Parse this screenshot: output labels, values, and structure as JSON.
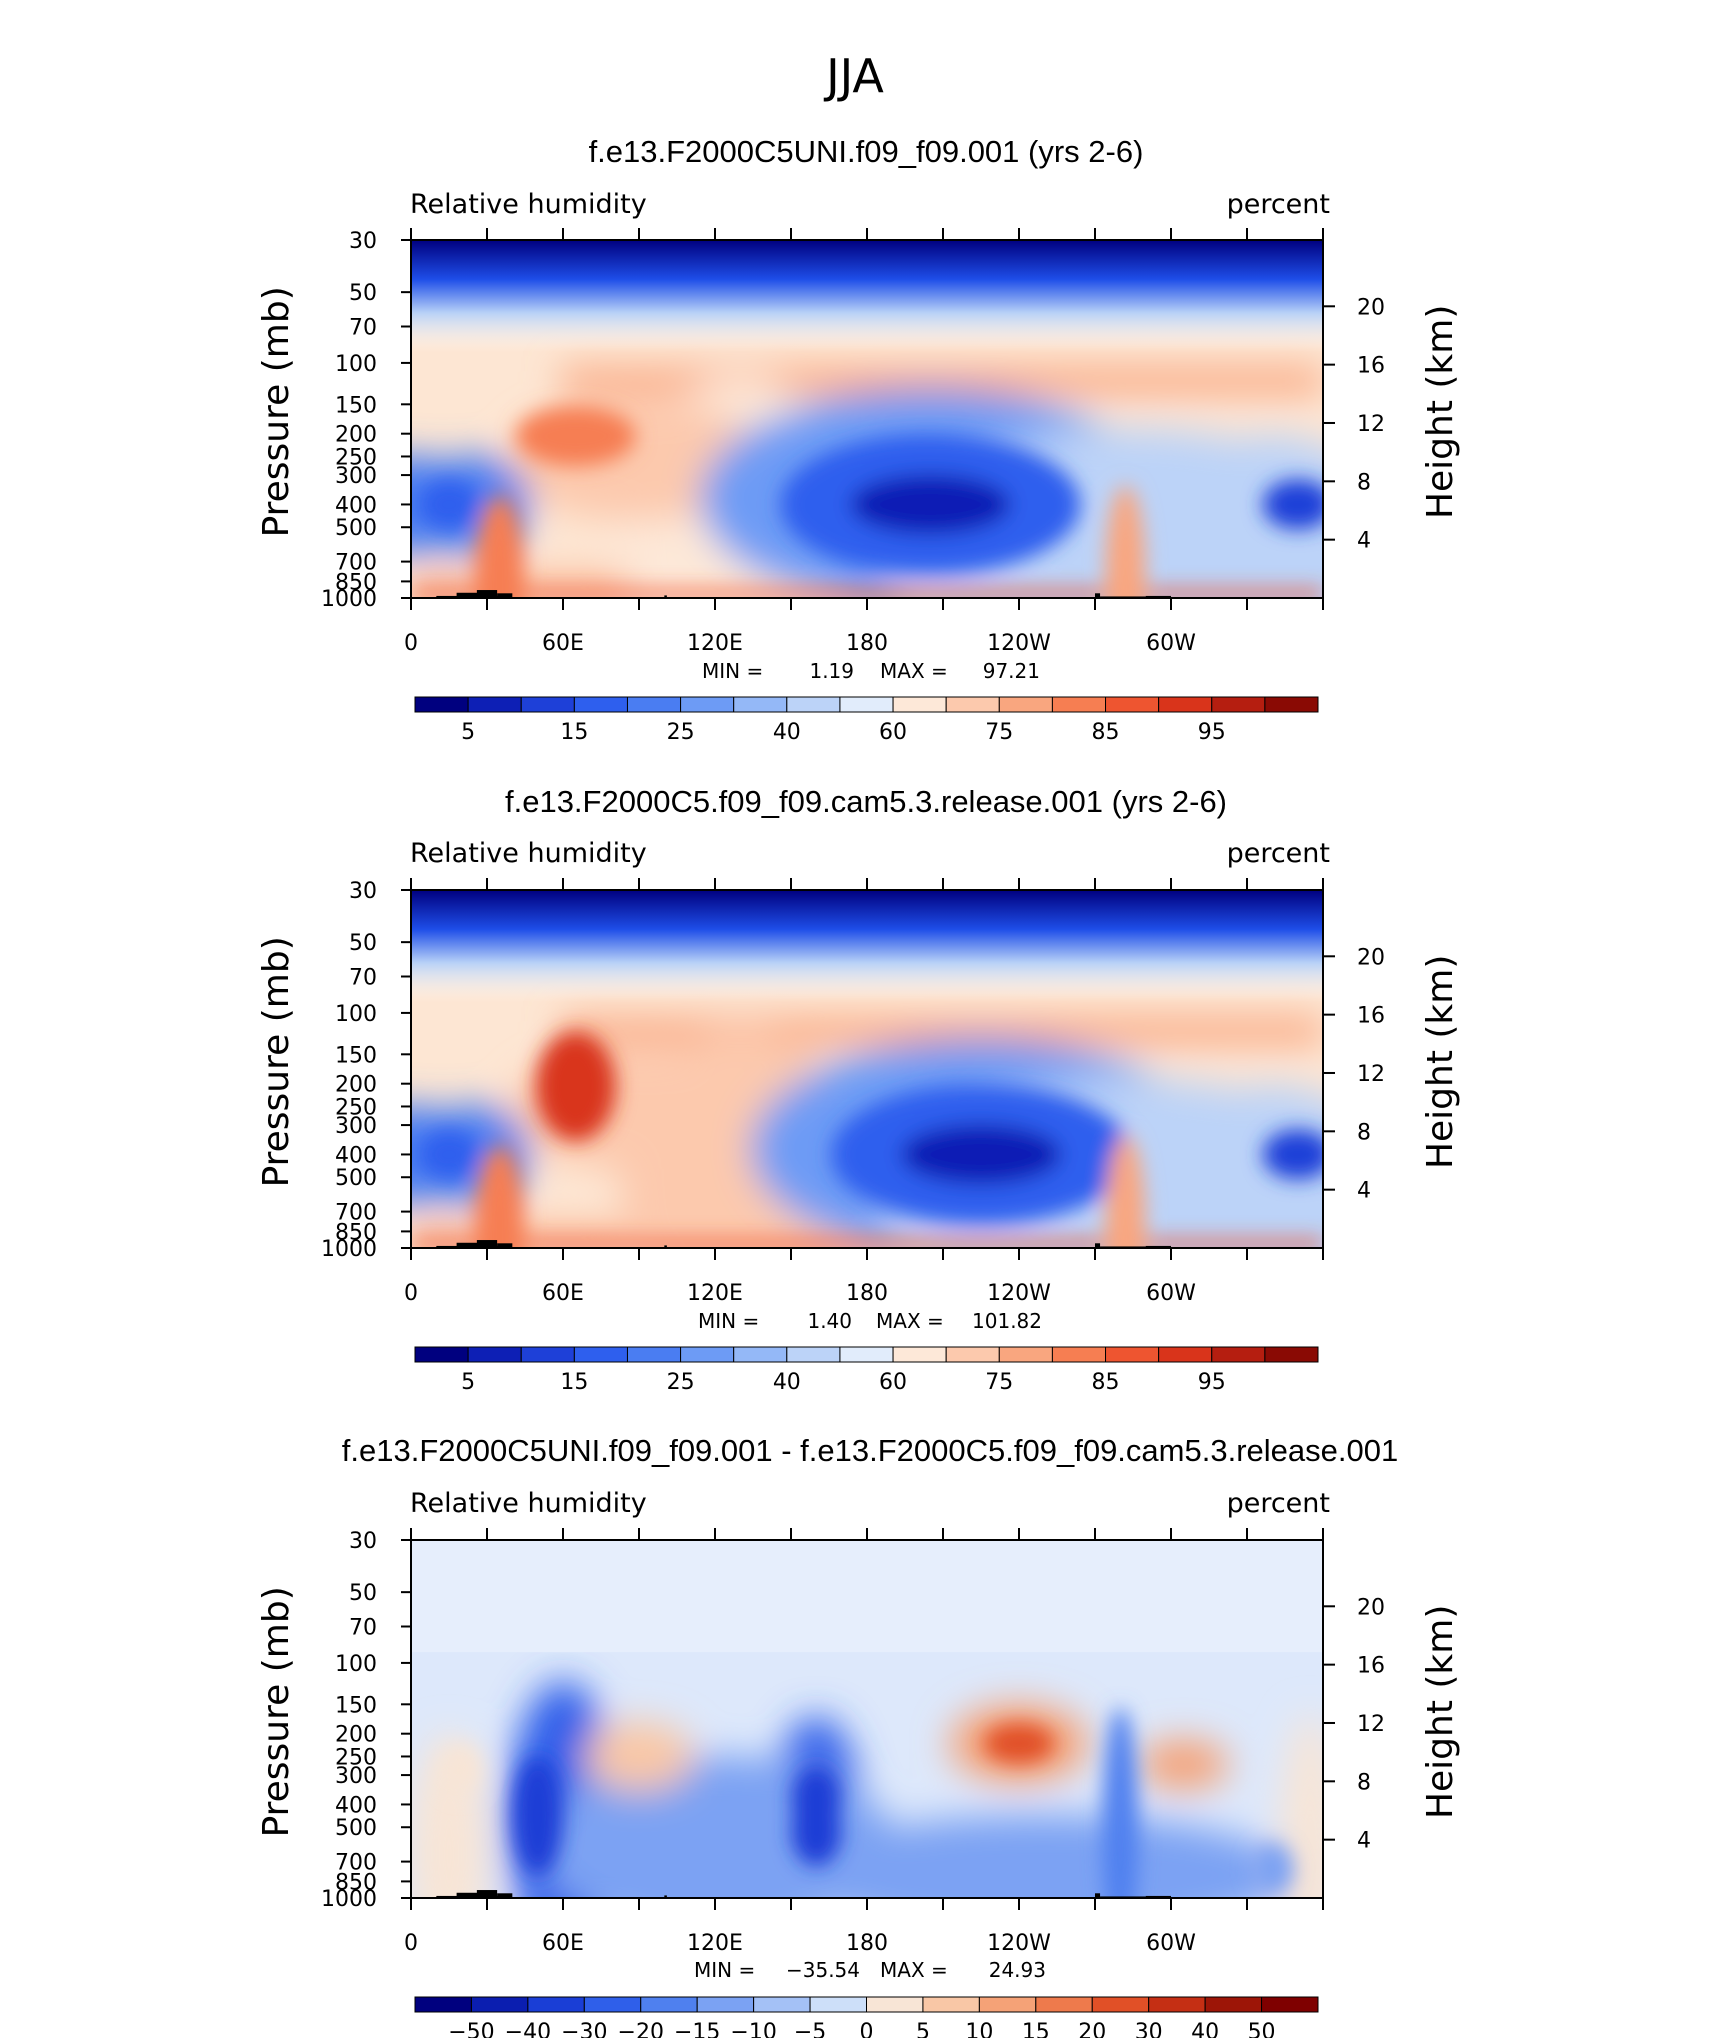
{
  "figure_title": "JJA",
  "chart_data": [
    {
      "type": "heatmap",
      "title": "f.e13.F2000C5UNI.f09_f09.001 (yrs 2-6)",
      "left_label": "Relative humidity",
      "right_label": "percent",
      "ylabel": "Pressure (mb)",
      "y2label": "Height (km)",
      "x_ticks": [
        "0",
        "60E",
        "120E",
        "180",
        "120W",
        "60W"
      ],
      "y_ticks": [
        30,
        50,
        70,
        100,
        150,
        200,
        250,
        300,
        400,
        500,
        700,
        850,
        1000
      ],
      "y2_ticks": [
        20,
        16,
        12,
        8,
        4
      ],
      "min_label": "MIN =",
      "min": "1.19",
      "max_label": "MAX =",
      "max": "97.21",
      "colorbar_labels": [
        "5",
        "15",
        "25",
        "40",
        "60",
        "75",
        "85",
        "95"
      ],
      "colormap": "diverging",
      "features": [
        {
          "lon": 205,
          "p": 380,
          "value": 10
        },
        {
          "lon": 345,
          "p": 400,
          "value": 12
        },
        {
          "lon": 25,
          "p": 400,
          "value": 25
        },
        {
          "lon": 65,
          "p": 200,
          "value": 85
        },
        {
          "lon": 0,
          "p": 900,
          "value": 88
        }
      ]
    },
    {
      "type": "heatmap",
      "title": "f.e13.F2000C5.f09_f09.cam5.3.release.001 (yrs 2-6)",
      "left_label": "Relative humidity",
      "right_label": "percent",
      "ylabel": "Pressure (mb)",
      "y2label": "Height (km)",
      "x_ticks": [
        "0",
        "60E",
        "120E",
        "180",
        "120W",
        "60W"
      ],
      "y_ticks": [
        30,
        50,
        70,
        100,
        150,
        200,
        250,
        300,
        400,
        500,
        700,
        850,
        1000
      ],
      "y2_ticks": [
        20,
        16,
        12,
        8,
        4
      ],
      "min_label": "MIN =",
      "min": "1.40",
      "max_label": "MAX =",
      "max": "101.82",
      "colorbar_labels": [
        "5",
        "15",
        "25",
        "40",
        "60",
        "75",
        "85",
        "95"
      ],
      "colormap": "diverging",
      "features": [
        {
          "lon": 225,
          "p": 400,
          "value": 12
        },
        {
          "lon": 345,
          "p": 400,
          "value": 15
        },
        {
          "lon": 25,
          "p": 400,
          "value": 25
        },
        {
          "lon": 60,
          "p": 200,
          "value": 95
        },
        {
          "lon": 130,
          "p": 600,
          "value": 80
        }
      ]
    },
    {
      "type": "heatmap",
      "title": "f.e13.F2000C5UNI.f09_f09.001 - f.e13.F2000C5.f09_f09.cam5.3.release.001",
      "left_label": "Relative humidity",
      "right_label": "percent",
      "ylabel": "Pressure (mb)",
      "y2label": "Height (km)",
      "x_ticks": [
        "0",
        "60E",
        "120E",
        "180",
        "120W",
        "60W"
      ],
      "y_ticks": [
        30,
        50,
        70,
        100,
        150,
        200,
        250,
        300,
        400,
        500,
        700,
        850,
        1000
      ],
      "y2_ticks": [
        20,
        16,
        12,
        8,
        4
      ],
      "min_label": "MIN =",
      "min": "−35.54",
      "max_label": "MAX =",
      "max": "24.93",
      "colorbar_labels": [
        "−50",
        "−40",
        "−30",
        "−20",
        "−15",
        "−10",
        "−5",
        "0",
        "5",
        "10",
        "15",
        "20",
        "30",
        "40",
        "50"
      ],
      "colormap": "diverging",
      "features": [
        {
          "lon": 60,
          "p": 450,
          "value": -30
        },
        {
          "lon": 160,
          "p": 450,
          "value": -30
        },
        {
          "lon": 240,
          "p": 220,
          "value": 20
        },
        {
          "lon": 90,
          "p": 250,
          "value": 10
        },
        {
          "lon": 305,
          "p": 280,
          "value": 15
        }
      ]
    }
  ]
}
